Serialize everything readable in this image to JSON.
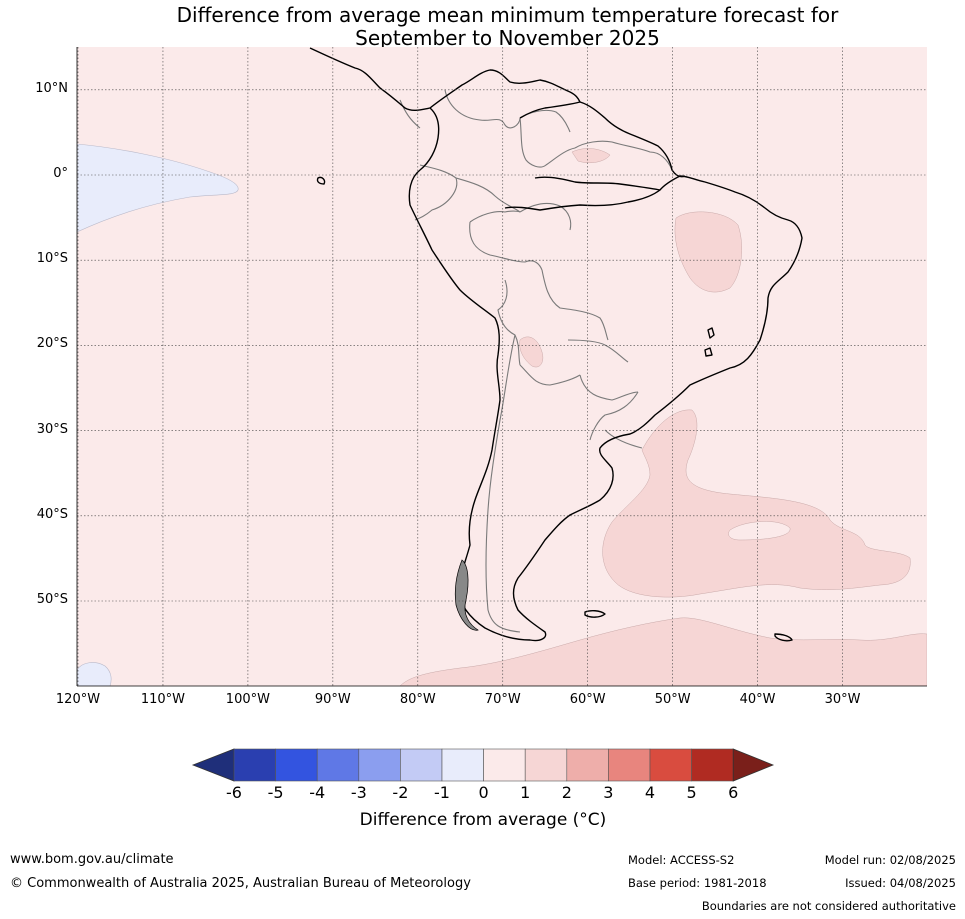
{
  "title_line1": "Difference from average mean minimum temperature forecast for",
  "title_line2": "September to November 2025",
  "lat_labels": [
    "10°N",
    "0°",
    "10°S",
    "20°S",
    "30°S",
    "40°S",
    "50°S"
  ],
  "lat_values": [
    10,
    0,
    -10,
    -20,
    -30,
    -40,
    -50
  ],
  "lon_labels": [
    "120°W",
    "110°W",
    "100°W",
    "90°W",
    "80°W",
    "70°W",
    "60°W",
    "50°W",
    "40°W",
    "30°W"
  ],
  "lon_values": [
    -120,
    -110,
    -100,
    -90,
    -80,
    -70,
    -60,
    -50,
    -40,
    -30
  ],
  "colorbar": {
    "ticks": [
      "-6",
      "-5",
      "-4",
      "-3",
      "-2",
      "-1",
      "0",
      "1",
      "2",
      "3",
      "4",
      "5",
      "6"
    ],
    "colors": [
      "#2a3fb0",
      "#3354e0",
      "#5f78e6",
      "#8b9eef",
      "#c3cbf5",
      "#e8ecfb",
      "#fbeaea",
      "#f6d6d5",
      "#eeaeaa",
      "#e8857e",
      "#d94c3f",
      "#b02b22"
    ],
    "under_color": "#1f2f7a",
    "over_color": "#7a1f1a",
    "label": "Difference from average (°C)"
  },
  "footer": {
    "url": "www.bom.gov.au/climate",
    "copyright": "© Commonwealth of Australia 2025, Australian Bureau of Meteorology",
    "model": "Model: ACCESS-S2",
    "base_period": "Base period: 1981-2018",
    "model_run": "Model run: 02/08/2025",
    "issued": "Issued: 04/08/2025",
    "disclaimer": "Boundaries are not considered authoritative"
  }
}
